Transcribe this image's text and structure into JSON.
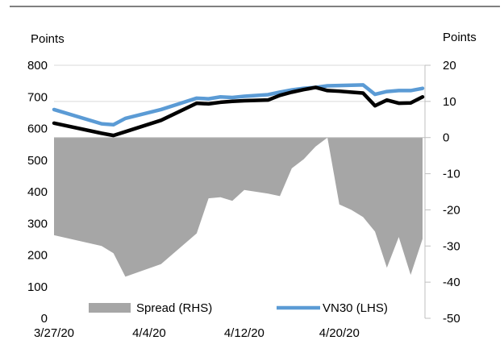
{
  "chart_data": {
    "type": "line",
    "left_axis_label": "Points",
    "right_axis_label": "Points",
    "x_tick_labels": [
      "3/27/20",
      "4/4/20",
      "4/12/20",
      "4/20/20"
    ],
    "left_ticks": [
      "0",
      "100",
      "200",
      "300",
      "400",
      "500",
      "600",
      "700",
      "800"
    ],
    "right_ticks": [
      "-50",
      "-40",
      "-30",
      "-20",
      "-10",
      "0",
      "10",
      "20"
    ],
    "ylim_left": [
      0,
      800
    ],
    "ylim_right": [
      -50,
      20
    ],
    "x_range_days": [
      0,
      31
    ],
    "legend_position": "bottom",
    "series": [
      {
        "name": "Spread (RHS)",
        "type": "area",
        "axis": "right",
        "color": "#a6a6a6",
        "x": [
          0,
          4,
          5,
          6,
          9,
          12,
          13,
          14,
          15,
          16,
          18,
          19,
          20,
          21,
          22,
          23,
          24,
          25,
          26,
          27,
          28,
          29,
          30,
          31
        ],
        "values": [
          -27,
          -30,
          -32,
          -38.5,
          -35,
          -26.5,
          -16.8,
          -16.5,
          -17.5,
          -14.5,
          -15.5,
          -16.2,
          -8.5,
          -6,
          -2.5,
          0,
          -18.5,
          -20,
          -22,
          -26,
          -36,
          -27.5,
          -38,
          -28
        ]
      },
      {
        "name": "VN30 (LHS)",
        "type": "line",
        "axis": "left",
        "color": "#5b9bd5",
        "x": [
          0,
          4,
          5,
          6,
          9,
          12,
          13,
          14,
          15,
          16,
          18,
          19,
          20,
          21,
          22,
          23,
          24,
          25,
          26,
          27,
          28,
          29,
          30,
          31
        ],
        "values": [
          660,
          615,
          612,
          632,
          660,
          696,
          694,
          700,
          698,
          702,
          707,
          715,
          722,
          727,
          730,
          735,
          736,
          737,
          738,
          708,
          717,
          720,
          720,
          727
        ]
      },
      {
        "name": "",
        "type": "line",
        "axis": "left",
        "color": "#000000",
        "x": [
          0,
          4,
          5,
          6,
          9,
          12,
          13,
          14,
          15,
          16,
          18,
          19,
          20,
          21,
          22,
          23,
          24,
          25,
          26,
          27,
          28,
          29,
          30,
          31
        ],
        "values": [
          617,
          585,
          578,
          590,
          626,
          680,
          678,
          683,
          686,
          688,
          690,
          705,
          715,
          723,
          730,
          720,
          718,
          715,
          712,
          672,
          690,
          680,
          681,
          700
        ]
      }
    ]
  }
}
